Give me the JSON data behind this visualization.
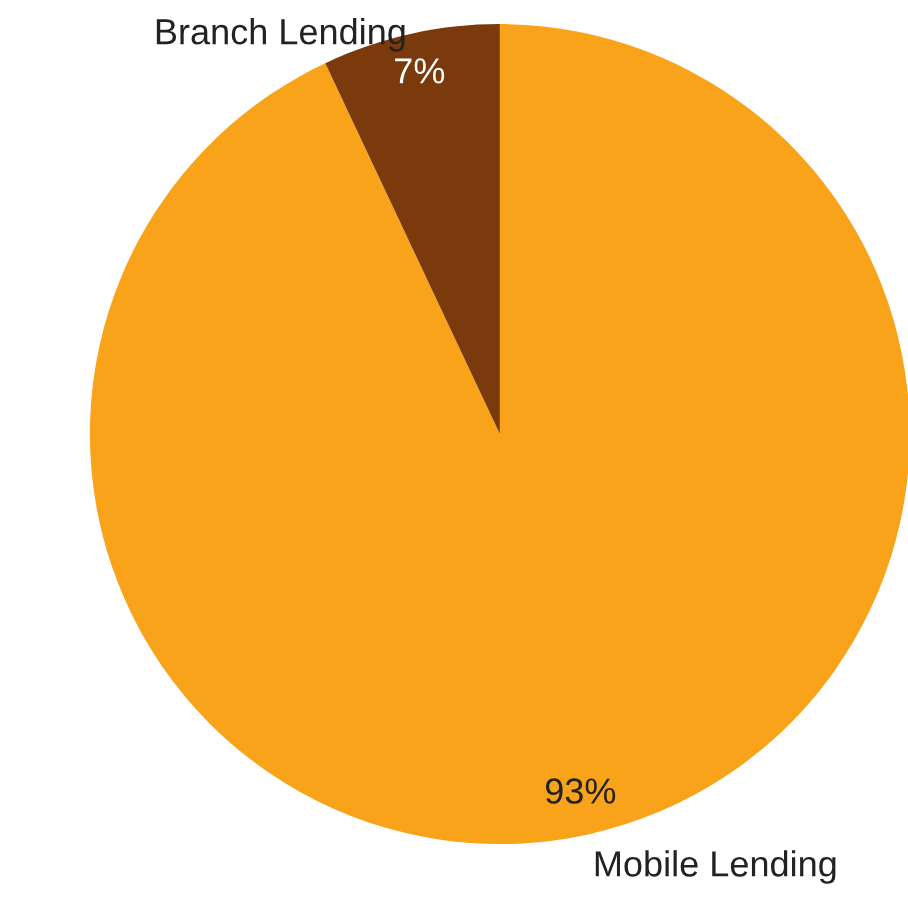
{
  "chart_data": {
    "type": "pie",
    "categories": [
      "Mobile Lending",
      "Branch Lending"
    ],
    "values": [
      93,
      7
    ],
    "colors": [
      "#f9a31b",
      "#7a3a0c"
    ],
    "value_labels": [
      "93%",
      "7%"
    ]
  }
}
